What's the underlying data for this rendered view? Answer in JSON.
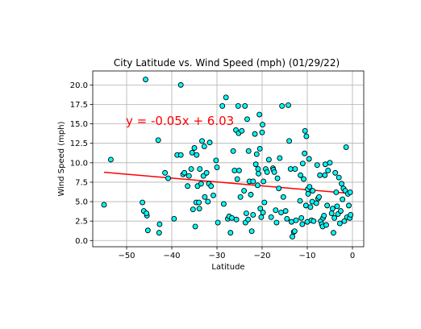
{
  "chart_data": {
    "type": "scatter",
    "title": "City Latitude vs. Wind Speed (mph) (01/29/22)",
    "xlabel": "Latitude",
    "ylabel": "Wind Speed (mph)",
    "xlim": [
      -57.5,
      2.5
    ],
    "ylim": [
      -0.8,
      21.8
    ],
    "xticks": [
      -50,
      -40,
      -30,
      -20,
      -10,
      0
    ],
    "yticks": [
      0.0,
      2.5,
      5.0,
      7.5,
      10.0,
      12.5,
      15.0,
      17.5,
      20.0
    ],
    "xtick_labels": [
      "−50",
      "−40",
      "−30",
      "−20",
      "−10",
      "0"
    ],
    "ytick_labels": [
      "0.0",
      "2.5",
      "5.0",
      "7.5",
      "10.0",
      "12.5",
      "15.0",
      "17.5",
      "20.0"
    ],
    "grid": true,
    "annotation": "y = -0.05x + 6.03",
    "regression": {
      "slope": -0.05,
      "intercept": 6.03,
      "x_range": [
        -55,
        0
      ]
    },
    "colors": {
      "marker_fill": "#00ffff",
      "marker_edge": "#000000",
      "regression_line": "#ff0000",
      "annotation": "#ff0000",
      "grid": "#b0b0b0"
    },
    "points": [
      [
        -55,
        4.6
      ],
      [
        -53.5,
        10.4
      ],
      [
        -46.5,
        4.9
      ],
      [
        -46.2,
        3.8
      ],
      [
        -45.8,
        20.7
      ],
      [
        -45.5,
        3.2
      ],
      [
        -45.6,
        3.5
      ],
      [
        -45.3,
        1.3
      ],
      [
        -43,
        12.9
      ],
      [
        -42.8,
        1.0
      ],
      [
        -42.7,
        2.1
      ],
      [
        -41.5,
        8.7
      ],
      [
        -40.8,
        8.0
      ],
      [
        -39.5,
        2.8
      ],
      [
        -38.8,
        11.0
      ],
      [
        -38,
        20.0
      ],
      [
        -38,
        11.0
      ],
      [
        -37.5,
        8.5
      ],
      [
        -37.2,
        8.7
      ],
      [
        -36.5,
        7.0
      ],
      [
        -36.2,
        8.3
      ],
      [
        -35.7,
        9.2
      ],
      [
        -35.5,
        11.3
      ],
      [
        -35.3,
        4.0
      ],
      [
        -35.0,
        11.9
      ],
      [
        -34.8,
        1.8
      ],
      [
        -34.6,
        4.9
      ],
      [
        -34.5,
        11.0
      ],
      [
        -34.3,
        7.0
      ],
      [
        -34.0,
        4.9
      ],
      [
        -33.9,
        4.1
      ],
      [
        -33.8,
        9.2
      ],
      [
        -33.5,
        7.3
      ],
      [
        -33.3,
        12.8
      ],
      [
        -33.0,
        8.3
      ],
      [
        -32.8,
        12.1
      ],
      [
        -32.7,
        5.6
      ],
      [
        -32.3,
        8.7
      ],
      [
        -32.0,
        5.0
      ],
      [
        -31.8,
        7.3
      ],
      [
        -31.6,
        12.6
      ],
      [
        -31.3,
        7.0
      ],
      [
        -30.8,
        5.8
      ],
      [
        -30.2,
        10.3
      ],
      [
        -30.0,
        9.4
      ],
      [
        -29.8,
        2.3
      ],
      [
        -28.8,
        17.3
      ],
      [
        -28.5,
        4.7
      ],
      [
        -28.0,
        18.4
      ],
      [
        -27.6,
        2.8
      ],
      [
        -27.3,
        3.1
      ],
      [
        -27.0,
        1.0
      ],
      [
        -26.7,
        2.9
      ],
      [
        -26.4,
        11.5
      ],
      [
        -26.1,
        9.0
      ],
      [
        -25.8,
        14.2
      ],
      [
        -25.7,
        2.7
      ],
      [
        -25.5,
        7.9
      ],
      [
        -25.3,
        17.3
      ],
      [
        -25.2,
        13.8
      ],
      [
        -25.1,
        9.0
      ],
      [
        -24.8,
        5.6
      ],
      [
        -24.5,
        14.1
      ],
      [
        -24.0,
        6.4
      ],
      [
        -23.8,
        17.3
      ],
      [
        -23.7,
        2.3
      ],
      [
        -23.5,
        3.5
      ],
      [
        -23.3,
        15.6
      ],
      [
        -23.1,
        2.7
      ],
      [
        -23.0,
        11.5
      ],
      [
        -22.8,
        7.6
      ],
      [
        -22.5,
        5.9
      ],
      [
        -22.3,
        1.2
      ],
      [
        -22.0,
        3.3
      ],
      [
        -22.0,
        7.6
      ],
      [
        -21.6,
        13.7
      ],
      [
        -21.4,
        9.8
      ],
      [
        -21.2,
        11.1
      ],
      [
        -21.0,
        7.1
      ],
      [
        -20.9,
        9.2
      ],
      [
        -20.8,
        8.6
      ],
      [
        -20.6,
        16.2
      ],
      [
        -20.5,
        11.8
      ],
      [
        -20.4,
        4.1
      ],
      [
        -20.2,
        3.0
      ],
      [
        -20.0,
        13.9
      ],
      [
        -19.9,
        14.9
      ],
      [
        -19.8,
        3.6
      ],
      [
        -19.7,
        7.6
      ],
      [
        -19.5,
        4.9
      ],
      [
        -19.2,
        9.2
      ],
      [
        -18.9,
        8.8
      ],
      [
        -18.5,
        10.4
      ],
      [
        -18.0,
        3.0
      ],
      [
        -17.6,
        9.3
      ],
      [
        -17.5,
        9.1
      ],
      [
        -17.3,
        8.8
      ],
      [
        -17.0,
        3.9
      ],
      [
        -16.8,
        2.3
      ],
      [
        -16.6,
        8.0
      ],
      [
        -16.3,
        6.7
      ],
      [
        -16.1,
        10.6
      ],
      [
        -15.8,
        3.6
      ],
      [
        -15.6,
        17.3
      ],
      [
        -15.3,
        5.6
      ],
      [
        -14.8,
        3.8
      ],
      [
        -14.5,
        2.8
      ],
      [
        -14.2,
        17.4
      ],
      [
        -14.0,
        12.8
      ],
      [
        -13.7,
        9.2
      ],
      [
        -13.5,
        2.4
      ],
      [
        -13.3,
        0.5
      ],
      [
        -13.0,
        1.1
      ],
      [
        -12.8,
        1.2
      ],
      [
        -12.7,
        9.2
      ],
      [
        -12.5,
        2.6
      ],
      [
        -11.6,
        5.1
      ],
      [
        -11.5,
        8.4
      ],
      [
        -11.3,
        2.9
      ],
      [
        -11.1,
        2.1
      ],
      [
        -11.0,
        9.9
      ],
      [
        -10.8,
        7.9
      ],
      [
        -10.6,
        11.2
      ],
      [
        -10.5,
        14.1
      ],
      [
        -10.3,
        4.5
      ],
      [
        -10.2,
        13.4
      ],
      [
        -10.0,
        2.4
      ],
      [
        -9.9,
        6.6
      ],
      [
        -9.8,
        6.0
      ],
      [
        -9.6,
        10.5
      ],
      [
        -9.5,
        6.9
      ],
      [
        -9.3,
        4.3
      ],
      [
        -9.1,
        2.6
      ],
      [
        -8.9,
        5.0
      ],
      [
        -8.8,
        6.4
      ],
      [
        -8.6,
        2.5
      ],
      [
        -8.0,
        4.8
      ],
      [
        -7.8,
        9.7
      ],
      [
        -7.6,
        5.4
      ],
      [
        -7.4,
        5.6
      ],
      [
        -7.2,
        8.4
      ],
      [
        -7.0,
        2.5
      ],
      [
        -6.8,
        2.1
      ],
      [
        -6.6,
        1.8
      ],
      [
        -6.5,
        2.9
      ],
      [
        -6.3,
        3.2
      ],
      [
        -6.1,
        8.4
      ],
      [
        -6.0,
        9.8
      ],
      [
        -5.8,
        2.0
      ],
      [
        -5.6,
        4.5
      ],
      [
        -5.4,
        9.0
      ],
      [
        -5.0,
        10.0
      ],
      [
        -4.6,
        3.5
      ],
      [
        -4.4,
        4.1
      ],
      [
        -4.2,
        1.0
      ],
      [
        -4.0,
        2.9
      ],
      [
        -3.8,
        8.7
      ],
      [
        -3.6,
        6.2
      ],
      [
        -3.4,
        4.4
      ],
      [
        -3.2,
        3.4
      ],
      [
        -3.0,
        8.1
      ],
      [
        -2.8,
        2.2
      ],
      [
        -2.6,
        3.8
      ],
      [
        -2.4,
        7.3
      ],
      [
        -2.2,
        5.3
      ],
      [
        -2.0,
        6.7
      ],
      [
        -1.8,
        2.5
      ],
      [
        -1.6,
        6.4
      ],
      [
        -1.4,
        12.0
      ],
      [
        -1.2,
        3.0
      ],
      [
        -1.0,
        6.0
      ],
      [
        -0.8,
        4.5
      ],
      [
        -0.6,
        2.9
      ],
      [
        -0.5,
        6.2
      ],
      [
        -0.4,
        3.3
      ]
    ]
  }
}
